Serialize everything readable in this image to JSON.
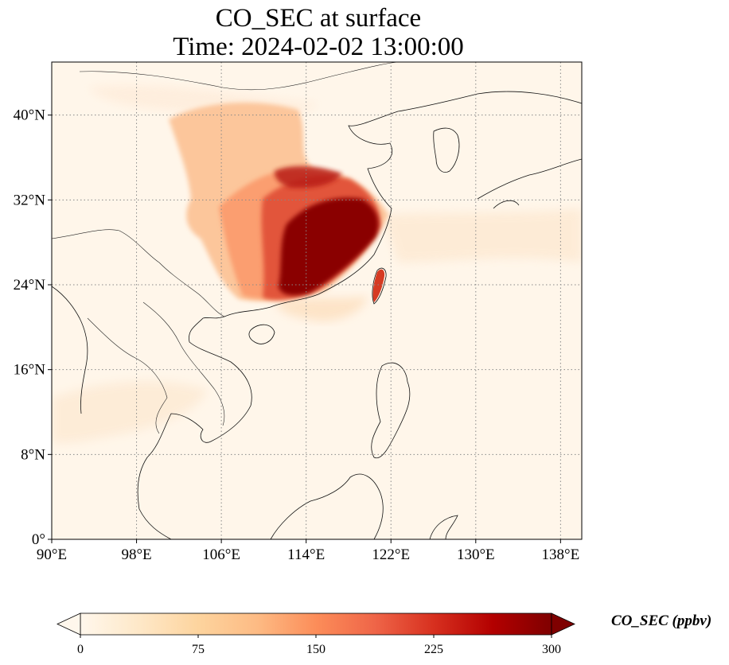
{
  "title": {
    "line1": "CO_SEC at surface",
    "line2": "Time: 2024-02-02 13:00:00"
  },
  "map": {
    "projection": "PlateCarree",
    "extent": {
      "lon_min": 90,
      "lon_max": 140,
      "lat_min": 0,
      "lat_max": 45
    },
    "gridlines": "dotted",
    "xticks": [
      {
        "value": 90,
        "label": "90°E"
      },
      {
        "value": 98,
        "label": "98°E"
      },
      {
        "value": 106,
        "label": "106°E"
      },
      {
        "value": 114,
        "label": "114°E"
      },
      {
        "value": 122,
        "label": "122°E"
      },
      {
        "value": 130,
        "label": "130°E"
      },
      {
        "value": 138,
        "label": "138°E"
      }
    ],
    "yticks": [
      {
        "value": 0,
        "label": "0°"
      },
      {
        "value": 8,
        "label": "8°N"
      },
      {
        "value": 16,
        "label": "16°N"
      },
      {
        "value": 24,
        "label": "24°N"
      },
      {
        "value": 32,
        "label": "32°N"
      },
      {
        "value": 40,
        "label": "40°N"
      }
    ]
  },
  "colorbar": {
    "label": "CO_SEC (ppbv)",
    "colormap": "OrRd",
    "min": 0,
    "max": 300,
    "extend": "both",
    "ticks": [
      {
        "value": 0,
        "label": "0"
      },
      {
        "value": 75,
        "label": "75"
      },
      {
        "value": 150,
        "label": "150"
      },
      {
        "value": 225,
        "label": "225"
      },
      {
        "value": 300,
        "label": "300"
      }
    ],
    "colors": [
      "#fff7ec",
      "#fee8c8",
      "#fdd49e",
      "#fdbb84",
      "#fc8d59",
      "#ef6548",
      "#d7301f",
      "#b30000",
      "#7f0000"
    ]
  }
}
